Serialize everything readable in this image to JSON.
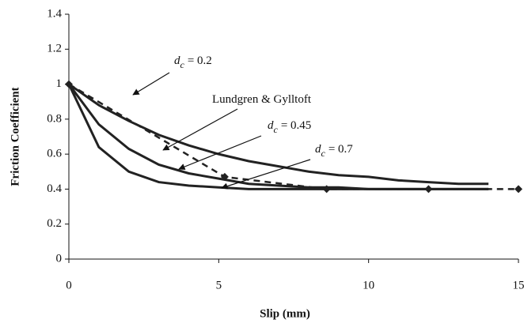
{
  "chart_data": {
    "type": "line",
    "xlabel": "Slip (mm)",
    "ylabel": "Friction Coefficient",
    "xlim": [
      0,
      15
    ],
    "xticks": [
      0,
      5,
      10,
      15
    ],
    "ylim": [
      0,
      1.4
    ],
    "yticks": [
      0,
      0.2,
      0.4,
      0.6,
      0.8,
      1,
      1.2,
      1.4
    ],
    "grid": false,
    "series": [
      {
        "name": {
          "symbol": "d",
          "subscript": "c",
          "text": "= 0.2"
        },
        "color": "#222222",
        "dash": false,
        "markers": false,
        "x": [
          0,
          1,
          2,
          3,
          4,
          5,
          6,
          7,
          8,
          9,
          10,
          11,
          12,
          13,
          14
        ],
        "values": [
          1,
          0.88,
          0.79,
          0.71,
          0.65,
          0.6,
          0.56,
          0.53,
          0.5,
          0.48,
          0.47,
          0.45,
          0.44,
          0.43,
          0.43
        ]
      },
      {
        "name": {
          "symbol": "d",
          "subscript": "c",
          "text": "= 0.45"
        },
        "color": "#222222",
        "dash": false,
        "markers": false,
        "x": [
          0,
          1,
          2,
          3,
          4,
          5,
          6,
          7,
          8,
          9,
          10,
          11,
          12,
          13,
          14
        ],
        "values": [
          1,
          0.77,
          0.63,
          0.54,
          0.49,
          0.46,
          0.43,
          0.42,
          0.41,
          0.41,
          0.4,
          0.4,
          0.4,
          0.4,
          0.4
        ]
      },
      {
        "name": {
          "symbol": "d",
          "subscript": "c",
          "text": "= 0.7"
        },
        "color": "#222222",
        "dash": false,
        "markers": false,
        "x": [
          0,
          1,
          2,
          3,
          4,
          5,
          6,
          7,
          8,
          9,
          10,
          11,
          12,
          13,
          14
        ],
        "values": [
          1,
          0.64,
          0.5,
          0.44,
          0.42,
          0.41,
          0.4,
          0.4,
          0.4,
          0.4,
          0.4,
          0.4,
          0.4,
          0.4,
          0.4
        ]
      },
      {
        "name": {
          "text": "Lundgren & Gylltoft"
        },
        "color": "#222222",
        "dash": true,
        "markers": true,
        "x": [
          0,
          5.2,
          8.6,
          12,
          15
        ],
        "values": [
          1,
          0.47,
          0.4,
          0.4,
          0.4
        ]
      }
    ]
  }
}
